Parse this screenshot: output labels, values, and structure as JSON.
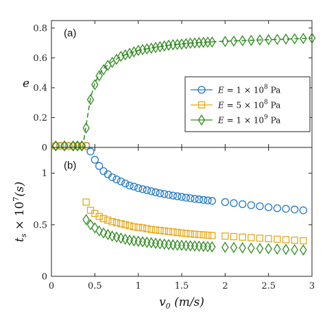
{
  "chart_data": [
    {
      "type": "line",
      "panel_label": "(a)",
      "xlabel": "",
      "ylabel": "e",
      "xlim": [
        0,
        3
      ],
      "ylim": [
        0,
        0.85
      ],
      "yticks": [
        0,
        0.2,
        0.4,
        0.6,
        0.8
      ],
      "ytick_labels": [
        "0",
        "0.2",
        "0.4",
        "0.6",
        "0.8"
      ],
      "grid": false,
      "legend_position": "center-right",
      "series": [
        {
          "name": "E = 1 × 10^8 Pa",
          "legend_parts": [
            "E = 1 × 10",
            "8",
            " Pa"
          ],
          "color": "#1f77c4",
          "marker": "circle",
          "x": [
            0.05,
            0.1,
            0.15,
            0.2,
            0.25,
            0.3,
            0.35,
            0.4
          ],
          "y": [
            0.01,
            0.01,
            0.01,
            0.01,
            0.01,
            0.01,
            0.01,
            0.01
          ]
        },
        {
          "name": "E = 5 × 10^8 Pa",
          "legend_parts": [
            "E = 5 × 10",
            "8",
            " Pa"
          ],
          "color": "#e6a817",
          "marker": "square",
          "x": [
            0.05,
            0.1,
            0.15,
            0.2,
            0.25,
            0.3,
            0.35,
            0.4
          ],
          "y": [
            0.01,
            0.01,
            0.01,
            0.01,
            0.01,
            0.01,
            0.01,
            0.01
          ]
        },
        {
          "name": "E = 1 × 10^9 Pa",
          "legend_parts": [
            "E = 1 × 10",
            "9",
            " Pa"
          ],
          "color": "#2e8b1e",
          "marker": "diamond",
          "x": [
            0.05,
            0.15,
            0.25,
            0.3,
            0.35,
            0.4,
            0.45,
            0.5,
            0.55,
            0.6,
            0.65,
            0.7,
            0.75,
            0.8,
            0.85,
            0.9,
            0.95,
            1.0,
            1.05,
            1.1,
            1.15,
            1.2,
            1.25,
            1.3,
            1.35,
            1.4,
            1.45,
            1.5,
            1.55,
            1.6,
            1.65,
            1.7,
            1.75,
            1.8,
            1.85,
            2.0,
            2.1,
            2.2,
            2.3,
            2.4,
            2.5,
            2.6,
            2.7,
            2.8,
            2.9,
            3.0
          ],
          "y": [
            0.01,
            0.01,
            0.01,
            0.01,
            0.01,
            0.13,
            0.32,
            0.42,
            0.48,
            0.52,
            0.55,
            0.57,
            0.59,
            0.61,
            0.62,
            0.63,
            0.64,
            0.65,
            0.655,
            0.66,
            0.665,
            0.67,
            0.675,
            0.68,
            0.685,
            0.688,
            0.69,
            0.692,
            0.695,
            0.698,
            0.7,
            0.702,
            0.704,
            0.705,
            0.706,
            0.71,
            0.712,
            0.715,
            0.717,
            0.72,
            0.722,
            0.724,
            0.726,
            0.728,
            0.73,
            0.732
          ]
        }
      ],
      "fit_curve": {
        "color": "#2e8b1e",
        "style": "dashed",
        "x": [
          0.36,
          0.4,
          0.45,
          0.5,
          0.55,
          0.6,
          0.7,
          0.8,
          0.9,
          1.0,
          1.2,
          1.4,
          1.6,
          1.8,
          2.0,
          2.2,
          2.4,
          2.6,
          2.8,
          3.0
        ],
        "y": [
          0.0,
          0.15,
          0.33,
          0.43,
          0.49,
          0.53,
          0.575,
          0.61,
          0.632,
          0.65,
          0.672,
          0.688,
          0.7,
          0.706,
          0.712,
          0.716,
          0.72,
          0.724,
          0.728,
          0.732
        ]
      }
    },
    {
      "type": "line",
      "panel_label": "(b)",
      "xlabel": "v0 (m/s)",
      "xlabel_parts": [
        "v",
        "0",
        " (m/s)"
      ],
      "ylabel": "ts × 10^7 (s)",
      "ylabel_parts": [
        "t",
        "s",
        " × 10",
        "7",
        "(s)"
      ],
      "xlim": [
        0,
        3
      ],
      "ylim": [
        0,
        1.25
      ],
      "xticks": [
        0,
        0.5,
        1,
        1.5,
        2,
        2.5,
        3
      ],
      "xtick_labels": [
        "0",
        "0.5",
        "1",
        "1.5",
        "2",
        "2.5",
        "3"
      ],
      "yticks": [
        0,
        0.5,
        1
      ],
      "ytick_labels": [
        "0",
        "0.5",
        "1"
      ],
      "grid": false,
      "series": [
        {
          "name": "E = 1 × 10^8 Pa",
          "color": "#1f77c4",
          "marker": "circle",
          "x": [
            0.45,
            0.5,
            0.55,
            0.6,
            0.65,
            0.7,
            0.75,
            0.8,
            0.85,
            0.9,
            0.95,
            1.0,
            1.05,
            1.1,
            1.15,
            1.2,
            1.25,
            1.3,
            1.35,
            1.4,
            1.45,
            1.5,
            1.55,
            1.6,
            1.65,
            1.7,
            1.75,
            1.8,
            1.85,
            2.0,
            2.1,
            2.2,
            2.3,
            2.4,
            2.5,
            2.6,
            2.7,
            2.8,
            2.9
          ],
          "y": [
            1.21,
            1.13,
            1.07,
            1.02,
            0.99,
            0.96,
            0.94,
            0.92,
            0.9,
            0.88,
            0.87,
            0.855,
            0.845,
            0.835,
            0.825,
            0.815,
            0.805,
            0.798,
            0.79,
            0.783,
            0.776,
            0.77,
            0.763,
            0.757,
            0.751,
            0.746,
            0.741,
            0.736,
            0.731,
            0.72,
            0.71,
            0.7,
            0.69,
            0.68,
            0.67,
            0.66,
            0.655,
            0.648,
            0.64
          ]
        },
        {
          "name": "E = 5 × 10^8 Pa",
          "color": "#e6a817",
          "marker": "square",
          "x": [
            0.4,
            0.45,
            0.5,
            0.55,
            0.6,
            0.65,
            0.7,
            0.75,
            0.8,
            0.85,
            0.9,
            0.95,
            1.0,
            1.05,
            1.1,
            1.15,
            1.2,
            1.25,
            1.3,
            1.35,
            1.4,
            1.45,
            1.5,
            1.55,
            1.6,
            1.65,
            1.7,
            1.75,
            1.8,
            1.85,
            2.0,
            2.1,
            2.2,
            2.3,
            2.4,
            2.5,
            2.6,
            2.7,
            2.8,
            2.9
          ],
          "y": [
            0.72,
            0.64,
            0.61,
            0.58,
            0.56,
            0.545,
            0.53,
            0.52,
            0.51,
            0.5,
            0.49,
            0.48,
            0.475,
            0.47,
            0.462,
            0.455,
            0.45,
            0.445,
            0.44,
            0.435,
            0.43,
            0.425,
            0.42,
            0.416,
            0.412,
            0.408,
            0.405,
            0.402,
            0.399,
            0.396,
            0.39,
            0.385,
            0.38,
            0.375,
            0.37,
            0.365,
            0.36,
            0.355,
            0.35,
            0.345
          ]
        },
        {
          "name": "E = 1 × 10^9 Pa",
          "color": "#2e8b1e",
          "marker": "diamond",
          "x": [
            0.4,
            0.45,
            0.5,
            0.55,
            0.6,
            0.65,
            0.7,
            0.75,
            0.8,
            0.85,
            0.9,
            0.95,
            1.0,
            1.05,
            1.1,
            1.15,
            1.2,
            1.25,
            1.3,
            1.35,
            1.4,
            1.45,
            1.5,
            1.55,
            1.6,
            1.65,
            1.7,
            1.75,
            1.8,
            1.85,
            2.0,
            2.1,
            2.2,
            2.3,
            2.4,
            2.5,
            2.6,
            2.7,
            2.8,
            2.9
          ],
          "y": [
            0.55,
            0.5,
            0.47,
            0.44,
            0.42,
            0.405,
            0.39,
            0.38,
            0.37,
            0.36,
            0.35,
            0.345,
            0.34,
            0.335,
            0.33,
            0.325,
            0.32,
            0.316,
            0.312,
            0.308,
            0.305,
            0.302,
            0.3,
            0.298,
            0.296,
            0.294,
            0.292,
            0.29,
            0.288,
            0.286,
            0.282,
            0.279,
            0.276,
            0.273,
            0.27,
            0.267,
            0.264,
            0.261,
            0.258,
            0.255
          ]
        }
      ]
    }
  ]
}
